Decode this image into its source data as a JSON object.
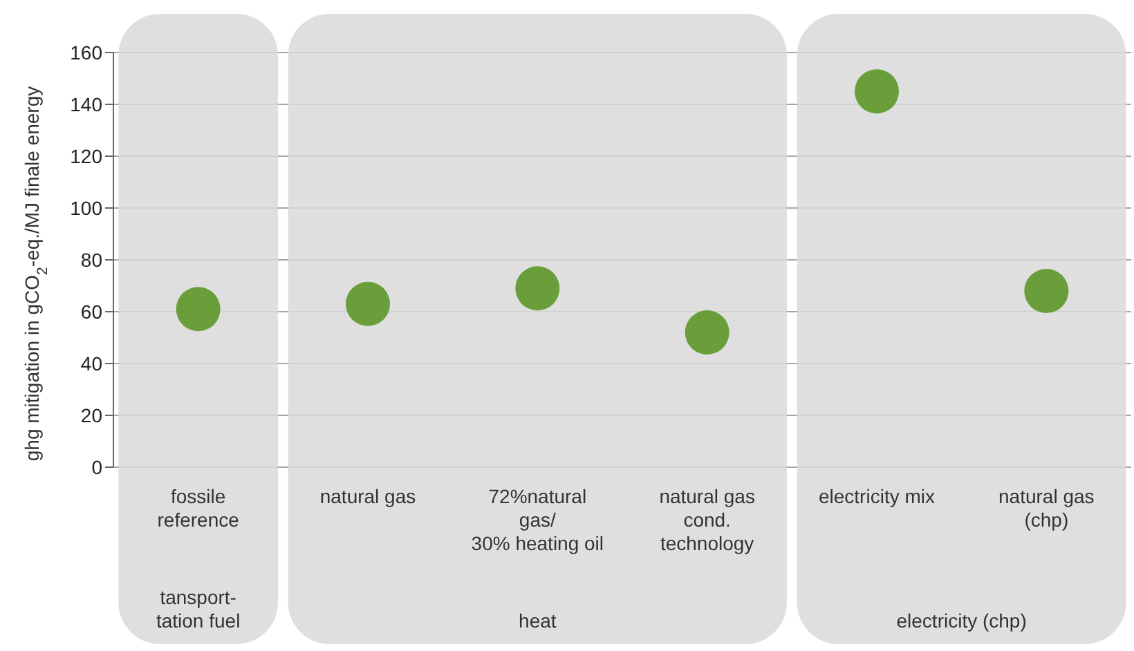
{
  "chart_data": {
    "type": "scatter",
    "ylabel": "ghg mitigation in gCO$_{2}$-eq./MJ finale energy",
    "categories": [
      "fossile\nreference",
      "natural gas",
      "72%natural\ngas/\n30% heating oil",
      "natural gas\ncond.\ntechnology",
      "electricity mix",
      "natural gas\n(chp)"
    ],
    "values": [
      61,
      63,
      69,
      52,
      145,
      68
    ],
    "color": "#6a9e3a",
    "marker": "circle",
    "ylim": [
      0,
      160
    ],
    "yticks": [
      0,
      20,
      40,
      60,
      80,
      100,
      120,
      140,
      160
    ],
    "grid": "y",
    "bands": [
      {
        "axis": "x",
        "from": "fossile\nreference",
        "to": "fossile\nreference",
        "label": "tansport-\ntation fuel",
        "color": "#d9d9d9"
      },
      {
        "axis": "x",
        "from": "natural gas",
        "to": "natural gas\ncond.\ntechnology",
        "label": "heat",
        "color": "#d9d9d9"
      },
      {
        "axis": "x",
        "from": "electricity mix",
        "to": "natural gas\n(chp)",
        "label": "electricity (chp)",
        "color": "#d9d9d9"
      }
    ]
  }
}
